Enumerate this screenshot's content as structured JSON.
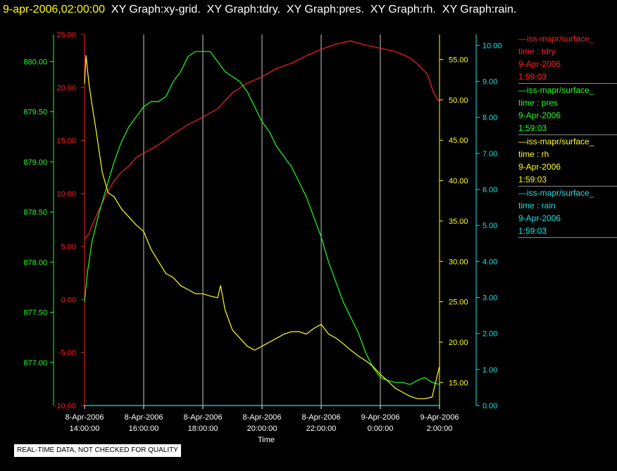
{
  "header": {
    "timestamp": "9-apr-2006,02:00:00",
    "graphs": [
      "XY Graph:xy-grid.",
      "XY Graph:tdry.",
      "XY Graph:pres.",
      "XY Graph:rh.",
      "XY Graph:rain."
    ]
  },
  "legend": [
    {
      "line": "—iss-mapr/surface_",
      "var": "time : tdry",
      "date": "9-Apr-2006",
      "time": "1:59:03",
      "color": "#ff2020"
    },
    {
      "line": "—iss-mapr/surface_",
      "var": "time : pres",
      "date": "9-Apr-2006",
      "time": "1:59:03",
      "color": "#20ff20"
    },
    {
      "line": "—iss-mapr/surface_",
      "var": "time : rh",
      "date": "9-Apr-2006",
      "time": "1:59:03",
      "color": "#ffff20"
    },
    {
      "line": "—iss-mapr/surface_",
      "var": "time : rain",
      "date": "9-Apr-2006",
      "time": "1:59:03",
      "color": "#20e0e0"
    }
  ],
  "footer_note": "REAL-TIME DATA, NOT CHECKED FOR QUALITY",
  "chart_data": {
    "type": "line",
    "xlabel": "Time",
    "x_ticks": [
      {
        "date": "8-Apr-2006",
        "time": "14:00:00",
        "hour": 14
      },
      {
        "date": "8-Apr-2006",
        "time": "16:00:00",
        "hour": 16
      },
      {
        "date": "8-Apr-2006",
        "time": "18:00:00",
        "hour": 18
      },
      {
        "date": "8-Apr-2006",
        "time": "20:00:00",
        "hour": 20
      },
      {
        "date": "8-Apr-2006",
        "time": "22:00:00",
        "hour": 22
      },
      {
        "date": "9-Apr-2006",
        "time": "0:00:00",
        "hour": 24
      },
      {
        "date": "9-Apr-2006",
        "time": "2:00:00",
        "hour": 26
      }
    ],
    "xlim_hours": [
      14,
      26
    ],
    "grid": true,
    "axes": {
      "tdry": {
        "color": "#ff2020",
        "ylim": [
          -10,
          25
        ],
        "ticks": [
          "25.00",
          "20.00",
          "15.00",
          "10.00",
          "5.00",
          "0.00",
          "-5.00",
          "-10.00"
        ]
      },
      "pres": {
        "color": "#20ff20",
        "ylim": [
          876.57,
          880.27
        ],
        "ticks": [
          "880.00",
          "879.50",
          "879.00",
          "878.50",
          "878.00",
          "877.50",
          "877.00"
        ]
      },
      "rh": {
        "color": "#ffff20",
        "ylim": [
          12.15,
          58.1
        ],
        "ticks": [
          "55.00",
          "50.00",
          "45.00",
          "40.00",
          "35.00",
          "30.00",
          "25.00",
          "20.00",
          "15.00"
        ]
      },
      "rain": {
        "color": "#20e0e0",
        "ylim": [
          0,
          10.3
        ],
        "ticks": [
          "10.00",
          "9.00",
          "8.00",
          "7.00",
          "6.00",
          "5.00",
          "4.00",
          "3.00",
          "2.00",
          "1.00",
          "0.00"
        ]
      }
    },
    "series": [
      {
        "name": "tdry",
        "axis": "tdry",
        "x": [
          14.0,
          14.15,
          14.3,
          14.5,
          14.75,
          15.0,
          15.25,
          15.5,
          15.75,
          16.0,
          16.5,
          17.0,
          17.5,
          18.0,
          18.5,
          19.0,
          19.5,
          20.0,
          20.5,
          21.0,
          21.5,
          22.0,
          22.5,
          23.0,
          23.5,
          24.0,
          24.5,
          25.0,
          25.3,
          25.6,
          25.8,
          26.0
        ],
        "y": [
          5.7,
          6.2,
          7.3,
          8.5,
          10.0,
          11.2,
          12.0,
          12.6,
          13.4,
          13.8,
          14.6,
          15.6,
          16.5,
          17.2,
          18.0,
          19.5,
          20.4,
          21.0,
          21.8,
          22.3,
          23.0,
          23.6,
          24.1,
          24.4,
          24.0,
          23.7,
          23.4,
          22.8,
          22.1,
          21.2,
          19.5,
          18.6
        ]
      },
      {
        "name": "pres",
        "axis": "pres",
        "x": [
          14.0,
          14.1,
          14.25,
          14.5,
          14.75,
          15.0,
          15.25,
          15.5,
          15.75,
          16.0,
          16.25,
          16.5,
          16.75,
          17.0,
          17.25,
          17.5,
          17.75,
          18.0,
          18.25,
          18.5,
          18.75,
          19.0,
          19.25,
          19.5,
          19.75,
          20.0,
          20.25,
          20.5,
          20.75,
          21.0,
          21.25,
          21.5,
          21.75,
          22.0,
          22.25,
          22.5,
          22.75,
          23.0,
          23.25,
          23.5,
          23.75,
          24.0,
          24.25,
          24.5,
          24.75,
          25.0,
          25.25,
          25.5,
          25.75,
          26.0
        ],
        "y": [
          877.6,
          877.9,
          878.2,
          878.5,
          878.75,
          879.0,
          879.2,
          879.35,
          879.45,
          879.55,
          879.6,
          879.6,
          879.65,
          879.8,
          879.9,
          880.05,
          880.1,
          880.1,
          880.1,
          880.0,
          879.9,
          879.85,
          879.8,
          879.7,
          879.55,
          879.4,
          879.3,
          879.15,
          879.05,
          878.95,
          878.8,
          878.65,
          878.45,
          878.25,
          878.0,
          877.8,
          877.6,
          877.45,
          877.3,
          877.1,
          876.95,
          876.85,
          876.82,
          876.8,
          876.8,
          876.78,
          876.82,
          876.85,
          876.8,
          876.78
        ]
      },
      {
        "name": "rh",
        "axis": "rh",
        "x": [
          14.0,
          14.05,
          14.15,
          14.25,
          14.4,
          14.6,
          14.8,
          15.0,
          15.25,
          15.5,
          15.75,
          16.0,
          16.25,
          16.5,
          16.75,
          17.0,
          17.25,
          17.5,
          17.75,
          18.0,
          18.25,
          18.5,
          18.6,
          18.75,
          19.0,
          19.25,
          19.5,
          19.75,
          20.0,
          20.25,
          20.5,
          20.75,
          21.0,
          21.25,
          21.5,
          21.75,
          22.0,
          22.25,
          22.5,
          22.75,
          23.0,
          23.25,
          23.5,
          23.75,
          24.0,
          24.25,
          24.5,
          24.75,
          25.0,
          25.25,
          25.5,
          25.75,
          25.9,
          26.0
        ],
        "y": [
          52.0,
          55.5,
          52.0,
          49.5,
          46.0,
          41.0,
          38.5,
          38.0,
          36.5,
          35.5,
          34.5,
          33.7,
          31.5,
          30.0,
          28.5,
          28.0,
          27.0,
          26.5,
          26.0,
          26.0,
          25.7,
          25.5,
          27.0,
          24.0,
          21.5,
          20.5,
          19.5,
          19.0,
          19.5,
          20.0,
          20.5,
          21.0,
          21.3,
          21.3,
          21.0,
          21.7,
          22.2,
          21.0,
          20.5,
          19.8,
          19.0,
          18.3,
          17.7,
          17.0,
          16.0,
          15.2,
          14.3,
          13.8,
          13.3,
          13.0,
          13.0,
          13.2,
          15.5,
          17.0
        ]
      },
      {
        "name": "rain",
        "axis": "rain",
        "x": [
          14.0,
          26.0
        ],
        "y": [
          0.0,
          0.0
        ]
      }
    ]
  }
}
